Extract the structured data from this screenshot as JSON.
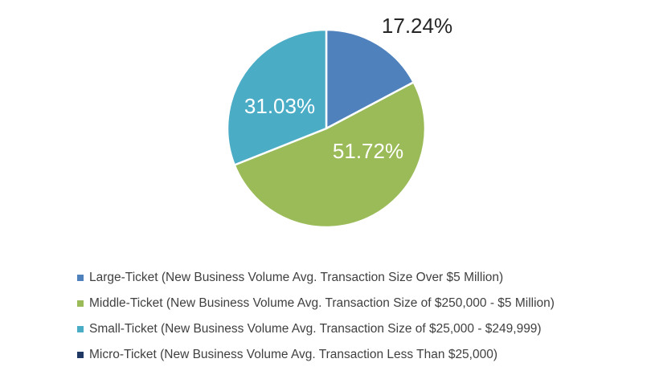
{
  "chart_data": {
    "type": "pie",
    "title": "",
    "series": [
      {
        "name": "Large-Ticket (New Business Volume Avg. Transaction Size Over $5 Million)",
        "value": 17.24,
        "label": "17.24%",
        "color": "#4F81BD"
      },
      {
        "name": "Middle-Ticket (New Business Volume Avg. Transaction Size of $250,000 - $5 Million)",
        "value": 51.72,
        "label": "51.72%",
        "color": "#9BBB59"
      },
      {
        "name": "Small-Ticket (New Business Volume Avg. Transaction Size of $25,000 - $249,999)",
        "value": 31.03,
        "label": "31.03%",
        "color": "#4BACC6"
      },
      {
        "name": "Micro-Ticket (New Business Volume Avg. Transaction Less Than $25,000)",
        "value": 0,
        "label": "",
        "color": "#1F3864"
      }
    ],
    "legend_position": "bottom",
    "start_angle": "12 o'clock, clockwise"
  }
}
